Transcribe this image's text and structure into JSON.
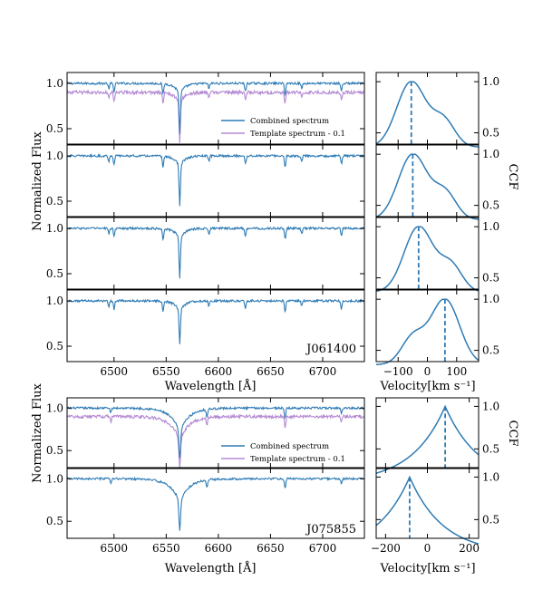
{
  "colors": {
    "combined": "#2e7bb5",
    "template": "#b48ad3",
    "ccf": "#2e7bb5",
    "axis": "#000000"
  },
  "labels": {
    "flux_ylabel": "Normalized Flux",
    "wave_xlabel": "Wavelength [Å]",
    "vel_xlabel": "Velocity[km s⁻¹]",
    "ccf_ylabel": "CCF",
    "legend_combined": "Combined spectrum",
    "legend_template": "Template spectrum - 0.1",
    "star1": "J061400",
    "star2": "J075855"
  },
  "chart_data": [
    {
      "type": "line",
      "star": "J061400",
      "panels": 4,
      "x_range": [
        6455,
        6740
      ],
      "x_ticks": [
        6500,
        6550,
        6600,
        6650,
        6700
      ],
      "y_ticks": [
        0.5,
        1.0
      ],
      "y_range": [
        0.33,
        1.12
      ],
      "features": {
        "h_alpha_center": 6563,
        "h_alpha_depth": [
          0.55,
          0.55,
          0.55,
          0.48
        ],
        "secondary_lines": [
          6495,
          6500,
          6547,
          6591,
          6626,
          6664,
          6680,
          6718
        ]
      },
      "legend": [
        "Combined spectrum",
        "Template spectrum - 0.1"
      ],
      "template_offset": -0.1,
      "ccf": {
        "x_range": [
          -175,
          175
        ],
        "x_ticks": [
          -100,
          0,
          100
        ],
        "y_ticks": [
          0.5,
          1.0
        ],
        "y_range": [
          0.39,
          1.09
        ],
        "peak_velocities": [
          -55,
          -50,
          -30,
          60
        ]
      }
    },
    {
      "type": "line",
      "star": "J075855",
      "panels": 2,
      "x_range": [
        6455,
        6740
      ],
      "x_ticks": [
        6500,
        6550,
        6600,
        6650,
        6700
      ],
      "y_ticks": [
        0.5,
        1.0
      ],
      "y_range": [
        0.3,
        1.12
      ],
      "features": {
        "h_alpha_center": 6563,
        "h_alpha_depth": [
          0.6,
          0.6
        ],
        "secondary_lines": [
          6497,
          6589,
          6664,
          6718
        ]
      },
      "legend": [
        "Combined spectrum",
        "Template spectrum - 0.1"
      ],
      "template_offset": -0.1,
      "ccf": {
        "x_range": [
          -245,
          245
        ],
        "x_ticks": [
          -200,
          0,
          200
        ],
        "y_ticks": [
          0.5,
          1.0
        ],
        "y_range": [
          0.28,
          1.1
        ],
        "peak_velocities": [
          85,
          -85
        ]
      }
    }
  ]
}
